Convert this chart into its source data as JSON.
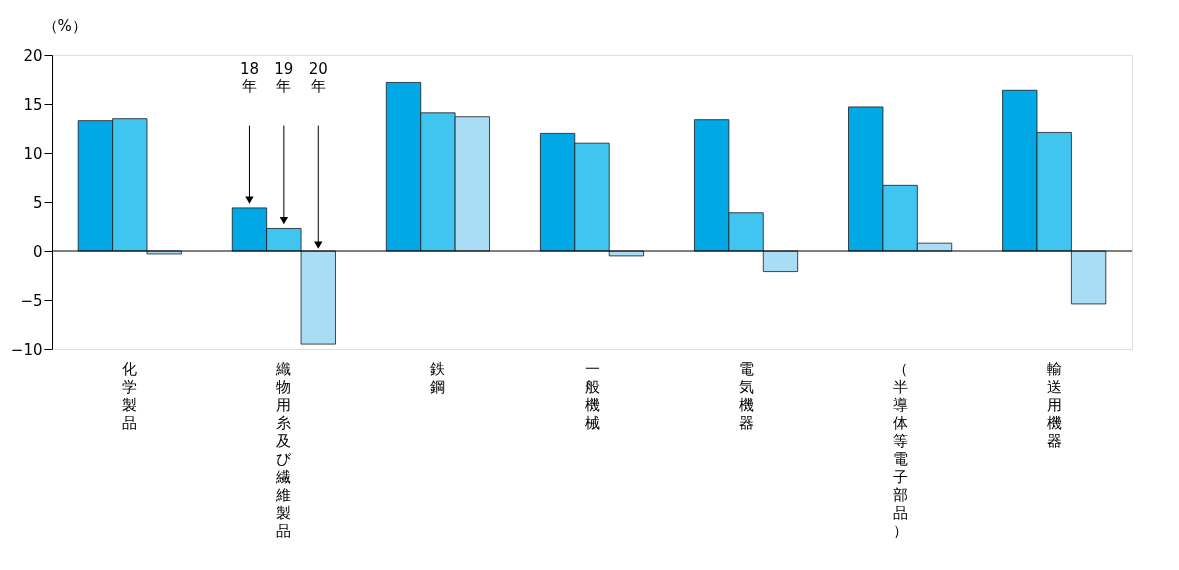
{
  "chart_data": {
    "type": "bar",
    "ylabel": "（%）",
    "categories": [
      "化学製品",
      "織物用糸及び繊維製品",
      "鉄鋼",
      "一般機械",
      "電気機器",
      "（半導体等電子部品）",
      "輸送用機器"
    ],
    "series": [
      {
        "color": "#00a9e6",
        "values": [
          13.3,
          4.4,
          17.2,
          12.0,
          13.4,
          14.7,
          16.4
        ]
      },
      {
        "color": "#40c4f0",
        "values": [
          13.5,
          2.3,
          14.1,
          11.0,
          3.9,
          6.7,
          12.1
        ]
      },
      {
        "color": "#a9ddf5",
        "values": [
          -0.3,
          -9.5,
          13.7,
          -0.5,
          -2.1,
          0.8,
          -5.4
        ]
      }
    ],
    "ylim": [
      -10,
      20
    ],
    "yticks": [
      -10,
      -5,
      0,
      5,
      10,
      15,
      20
    ],
    "ref_lines": [
      {
        "axis": "y",
        "value": 0
      }
    ],
    "annotations": [
      "18年",
      "19年",
      "20年"
    ],
    "grid": false,
    "legend": false
  }
}
